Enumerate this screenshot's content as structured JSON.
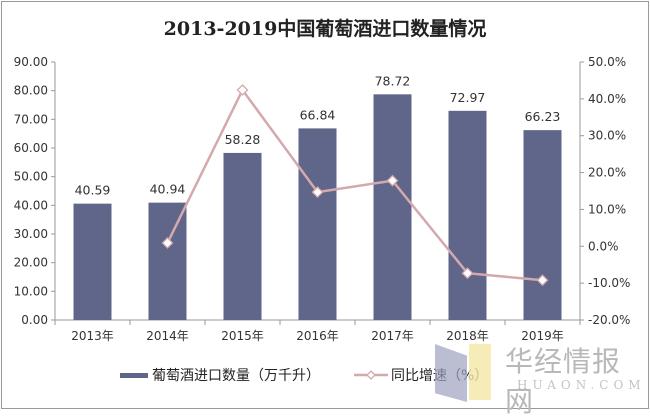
{
  "chart_data": {
    "type": "bar+line",
    "title": "2013-2019中国葡萄酒进口数量情况",
    "categories": [
      "2013年",
      "2014年",
      "2015年",
      "2016年",
      "2017年",
      "2018年",
      "2019年"
    ],
    "series": [
      {
        "name": "葡萄酒进口数量（万千升）",
        "type": "bar",
        "axis": "left",
        "color": "#5f6689",
        "values": [
          40.59,
          40.94,
          58.28,
          66.84,
          78.72,
          72.97,
          66.23
        ],
        "labels": [
          "40.59",
          "40.94",
          "58.28",
          "66.84",
          "78.72",
          "72.97",
          "66.23"
        ]
      },
      {
        "name": "同比增速（%）",
        "type": "line",
        "axis": "right",
        "color": "#d4a9ae",
        "values": [
          null,
          0.9,
          42.4,
          14.7,
          17.8,
          -7.3,
          -9.2
        ]
      }
    ],
    "yleft": {
      "lim": [
        0,
        90
      ],
      "ticks": [
        "0.00",
        "10.00",
        "20.00",
        "30.00",
        "40.00",
        "50.00",
        "60.00",
        "70.00",
        "80.00",
        "90.00"
      ]
    },
    "yright": {
      "lim": [
        -20,
        50
      ],
      "ticks": [
        "-20.0%",
        "-10.0%",
        "0.0%",
        "10.0%",
        "20.0%",
        "30.0%",
        "40.0%",
        "50.0%"
      ]
    },
    "grid": false,
    "legend": "bottom"
  },
  "watermark": {
    "text": "华经情报网",
    "sub": "HUAON.COM"
  }
}
